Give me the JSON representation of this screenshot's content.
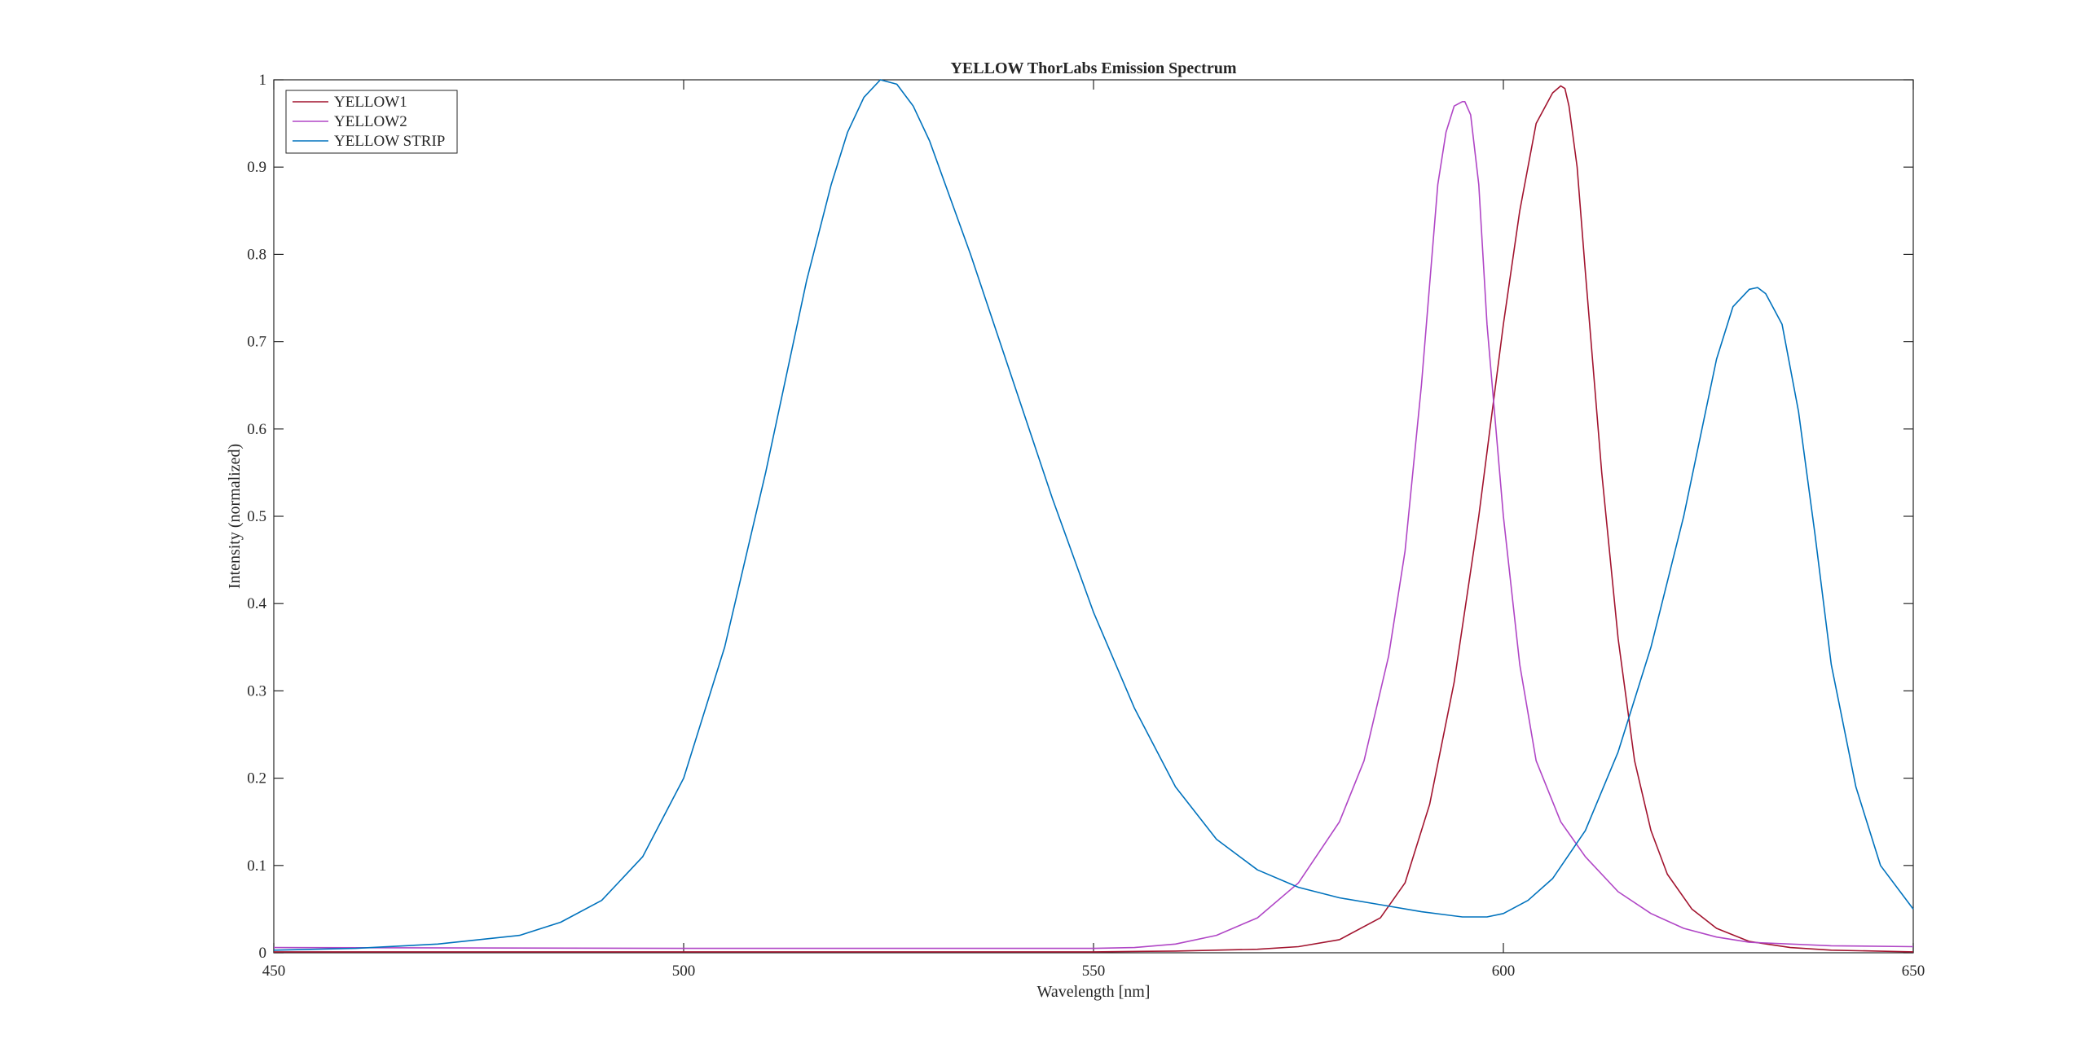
{
  "chart_data": {
    "type": "line",
    "title": "YELLOW ThorLabs Emission Spectrum",
    "xlabel": "Wavelength [nm]",
    "ylabel": "Intensity (normalized)",
    "xlim": [
      450,
      650
    ],
    "ylim": [
      0,
      1
    ],
    "xticks": [
      450,
      500,
      550,
      600,
      650
    ],
    "xtick_labels": [
      "450",
      "500",
      "550",
      "600",
      "650"
    ],
    "yticks": [
      0,
      0.1,
      0.2,
      0.3,
      0.4,
      0.5,
      0.6,
      0.7,
      0.8,
      0.9,
      1
    ],
    "ytick_labels": [
      "0",
      "0.1",
      "0.2",
      "0.3",
      "0.4",
      "0.5",
      "0.6",
      "0.7",
      "0.8",
      "0.9",
      "1"
    ],
    "grid": false,
    "legend_position": "top-left",
    "series": [
      {
        "name": "YELLOW1",
        "color": "#A2142F",
        "x": [
          450,
          500,
          550,
          560,
          570,
          575,
          580,
          585,
          588,
          591,
          594,
          597,
          600,
          602,
          604,
          606,
          607,
          607.5,
          608,
          609,
          610,
          612,
          614,
          616,
          618,
          620,
          623,
          626,
          630,
          635,
          640,
          650
        ],
        "y": [
          0.001,
          0.001,
          0.001,
          0.002,
          0.004,
          0.007,
          0.015,
          0.04,
          0.08,
          0.17,
          0.31,
          0.5,
          0.72,
          0.85,
          0.95,
          0.985,
          0.993,
          0.99,
          0.97,
          0.9,
          0.78,
          0.55,
          0.36,
          0.22,
          0.14,
          0.09,
          0.05,
          0.028,
          0.013,
          0.006,
          0.003,
          0.001
        ]
      },
      {
        "name": "YELLOW2",
        "color": "#B046C6",
        "x": [
          450,
          500,
          550,
          555,
          560,
          565,
          570,
          575,
          580,
          583,
          586,
          588,
          590,
          592,
          593,
          594,
          595,
          595.3,
          596,
          597,
          598,
          600,
          602,
          604,
          607,
          610,
          614,
          618,
          622,
          626,
          630,
          640,
          650
        ],
        "y": [
          0.006,
          0.005,
          0.005,
          0.006,
          0.01,
          0.02,
          0.04,
          0.08,
          0.15,
          0.22,
          0.34,
          0.46,
          0.65,
          0.88,
          0.94,
          0.97,
          0.975,
          0.975,
          0.96,
          0.88,
          0.72,
          0.5,
          0.33,
          0.22,
          0.15,
          0.11,
          0.07,
          0.045,
          0.028,
          0.018,
          0.012,
          0.008,
          0.007
        ]
      },
      {
        "name": "YELLOW STRIP",
        "color": "#0072BD",
        "x": [
          450,
          460,
          470,
          480,
          485,
          490,
          495,
          500,
          505,
          510,
          515,
          518,
          520,
          522,
          524,
          526,
          528,
          530,
          535,
          540,
          545,
          550,
          555,
          560,
          565,
          570,
          575,
          580,
          585,
          590,
          595,
          598,
          600,
          603,
          606,
          610,
          614,
          618,
          622,
          626,
          628,
          630,
          631,
          632,
          634,
          636,
          638,
          640,
          643,
          646,
          650
        ],
        "y": [
          0.003,
          0.005,
          0.01,
          0.02,
          0.035,
          0.06,
          0.11,
          0.2,
          0.35,
          0.55,
          0.77,
          0.88,
          0.94,
          0.98,
          1.0,
          0.995,
          0.97,
          0.93,
          0.8,
          0.66,
          0.52,
          0.39,
          0.28,
          0.19,
          0.13,
          0.095,
          0.075,
          0.063,
          0.055,
          0.047,
          0.041,
          0.041,
          0.045,
          0.06,
          0.085,
          0.14,
          0.23,
          0.35,
          0.5,
          0.68,
          0.74,
          0.76,
          0.762,
          0.755,
          0.72,
          0.62,
          0.48,
          0.33,
          0.19,
          0.1,
          0.05
        ]
      }
    ]
  }
}
